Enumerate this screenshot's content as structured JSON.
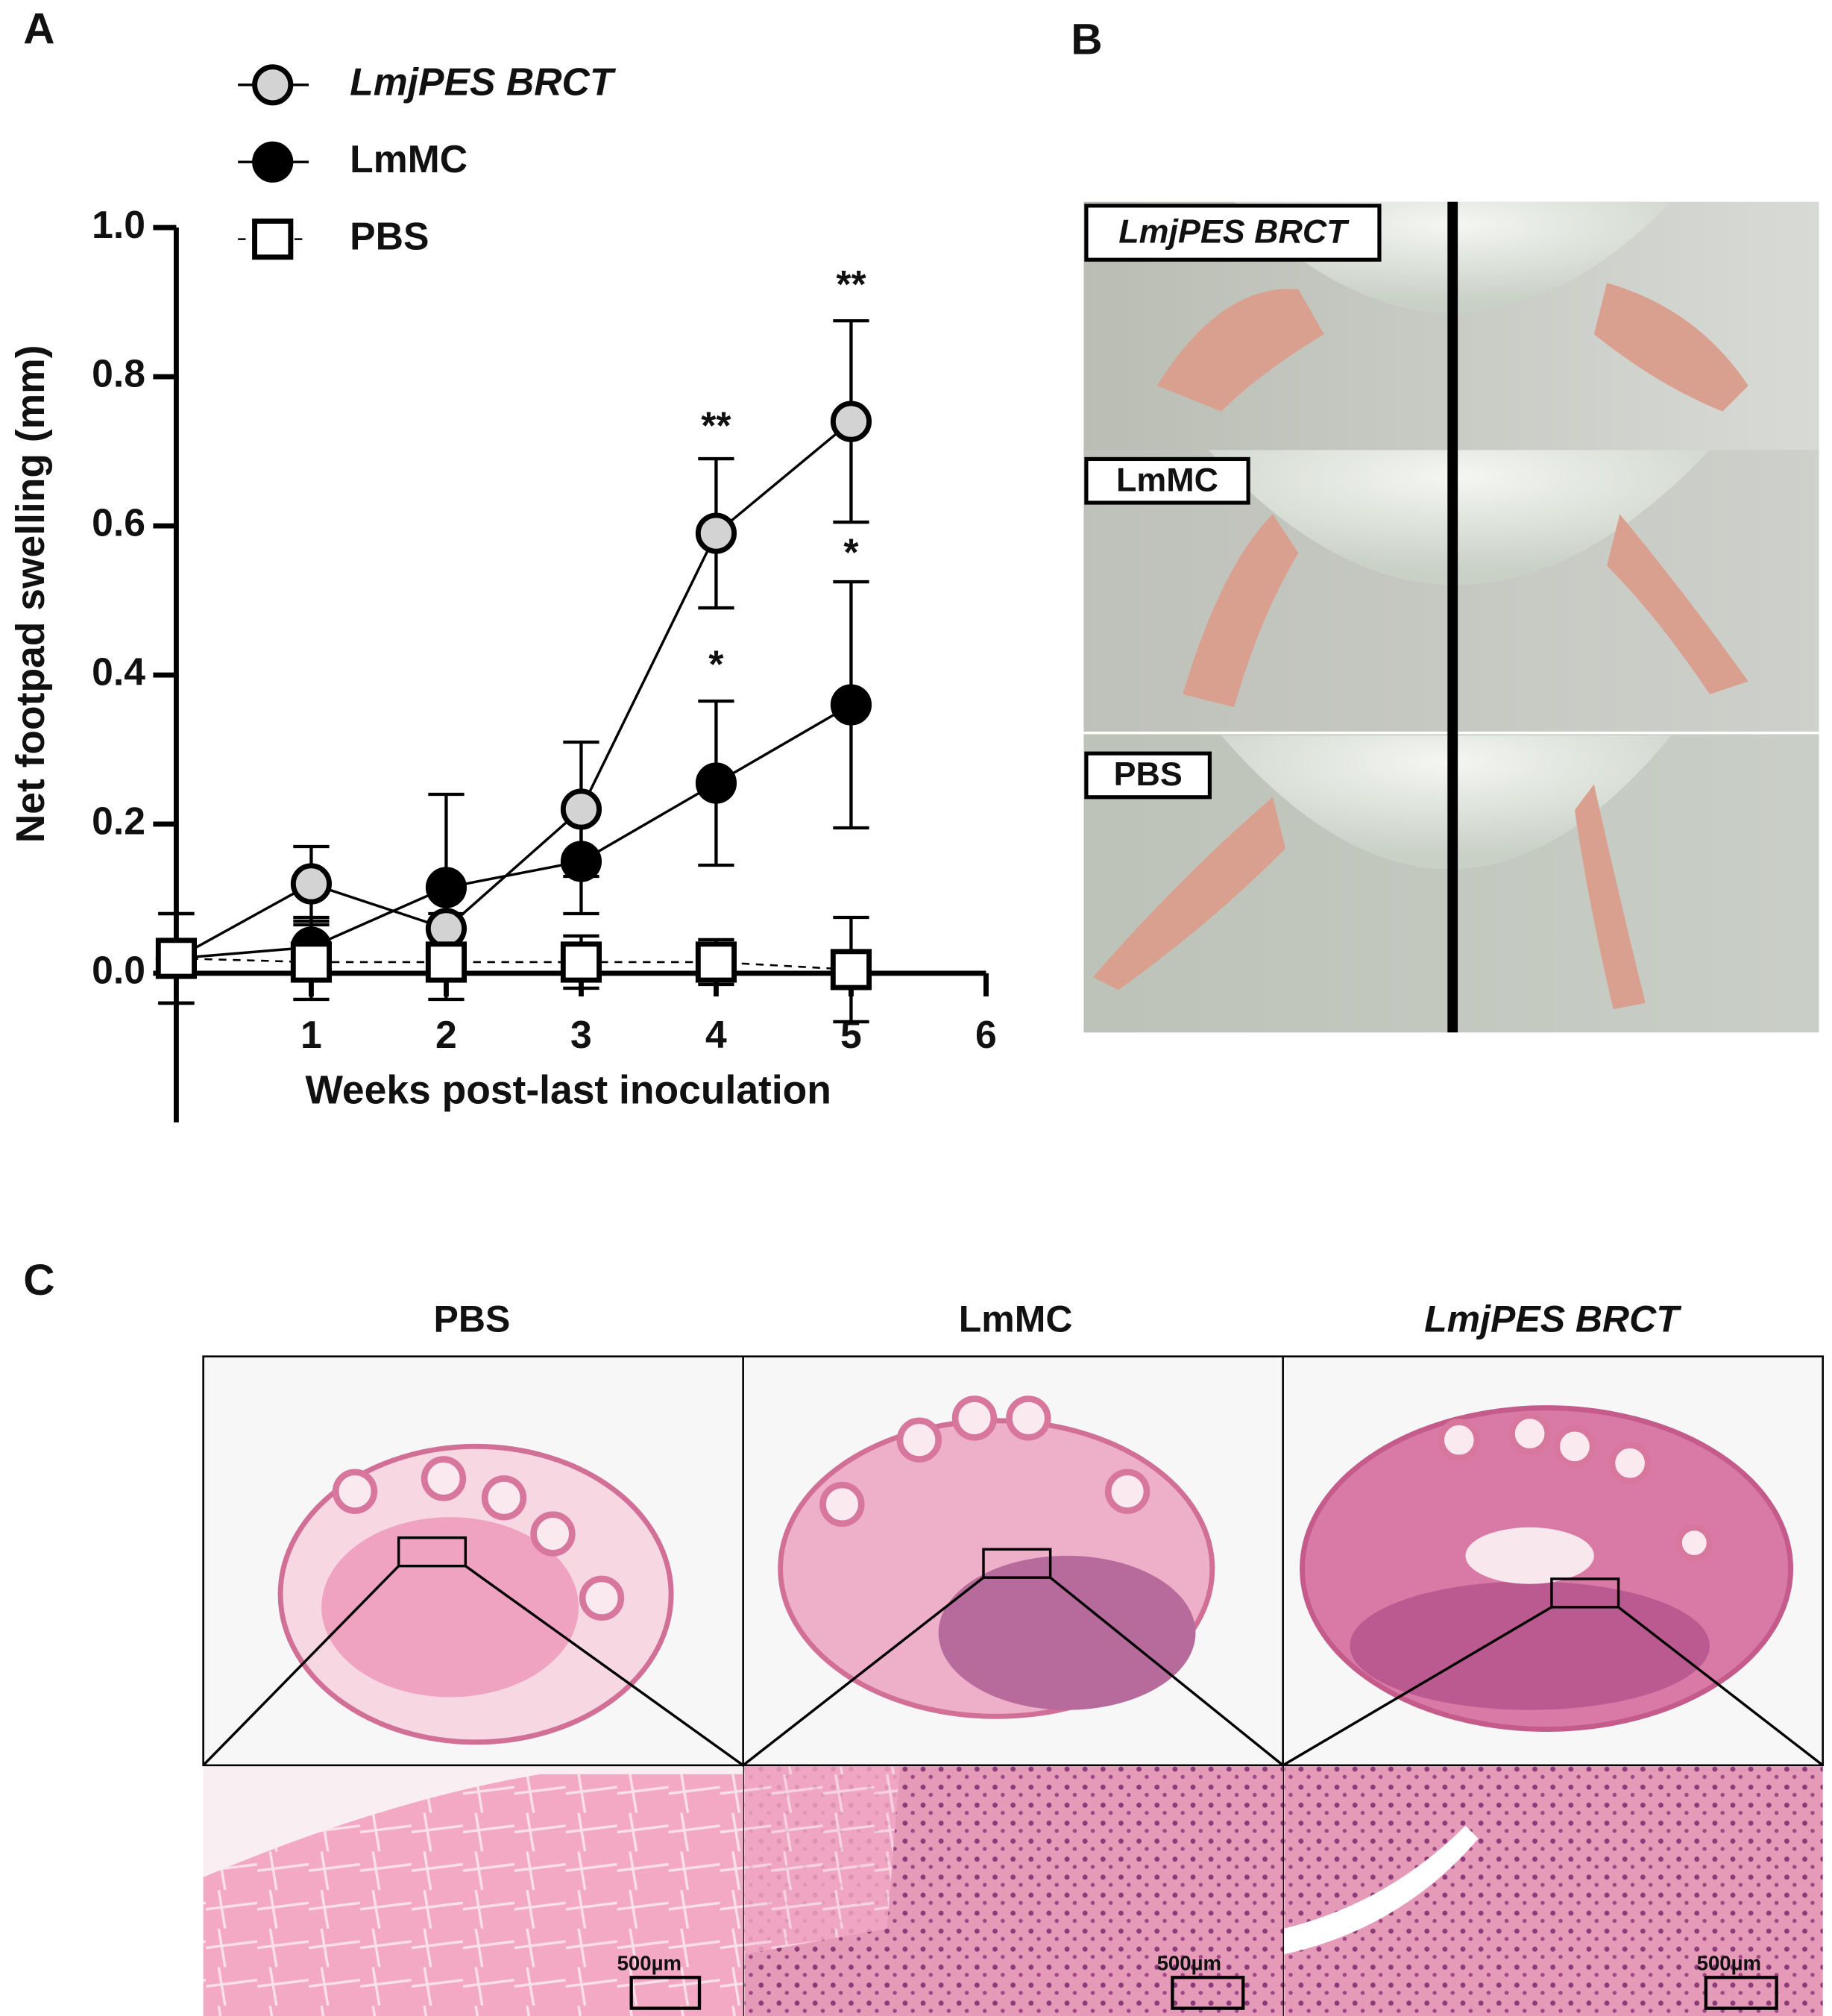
{
  "chart_data": {
    "type": "line",
    "x_label": "Weeks post-last inoculation",
    "y_label": "Net footpad swelling (mm)",
    "x": [
      0,
      1,
      2,
      3,
      4,
      5
    ],
    "xlim": [
      0,
      6
    ],
    "xticks": [
      1,
      2,
      3,
      4,
      5,
      6
    ],
    "ylim": [
      -0.2,
      1.0
    ],
    "yticks": [
      {
        "value": 0,
        "label": "0.0"
      },
      0.2,
      0.4,
      0.6,
      0.8,
      {
        "value": 1,
        "label": "1.0"
      }
    ],
    "legend": "upper left",
    "series": [
      {
        "name": "LmjPES BRCT",
        "color": "#d3d3d3",
        "marker": "circle",
        "line_style": "solid",
        "values": [
          0.02,
          0.12,
          0.06,
          0.22,
          0.59,
          0.74
        ],
        "errors": [
          0.06,
          0.05,
          0.02,
          0.09,
          0.1,
          0.135
        ]
      },
      {
        "name": "LmMC",
        "color": "#000000",
        "marker": "circle",
        "line_style": "solid",
        "values": [
          0.02,
          0.035,
          0.115,
          0.15,
          0.255,
          0.36
        ],
        "errors": [
          0.06,
          0.04,
          0.125,
          0.07,
          0.11,
          0.165
        ]
      },
      {
        "name": "PBS",
        "color": "#ffffff",
        "marker": "square",
        "line_style": "dashed",
        "values": [
          0.02,
          0.015,
          0.015,
          0.015,
          0.015,
          0.005
        ],
        "errors": [
          0.06,
          0.05,
          0.05,
          0.035,
          0.03,
          0.07
        ]
      }
    ],
    "annotations": [
      {
        "text": "**",
        "x": 4,
        "y": 0.73
      },
      {
        "text": "**",
        "x": 5,
        "y": 0.92
      },
      {
        "text": "*",
        "x": 4,
        "y": 0.41
      },
      {
        "text": "*",
        "x": 5,
        "y": 0.56
      }
    ]
  },
  "panel_labels": [
    "A",
    "B",
    "C"
  ],
  "photo_labels": [
    "LmjPES BRCT",
    "LmMC",
    "PBS"
  ],
  "histology": {
    "columns": [
      "PBS",
      "LmMC",
      "LmjPES BRCT"
    ],
    "scale_bar": "500µm"
  }
}
